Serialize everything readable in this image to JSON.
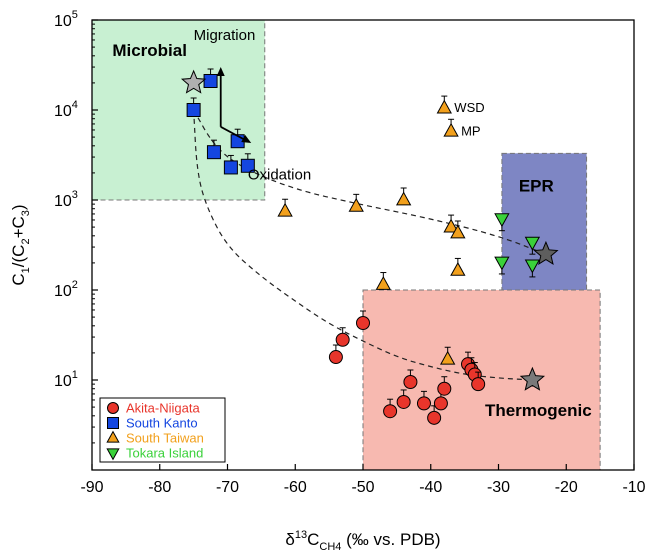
{
  "chart_data": {
    "type": "scatter",
    "xlabel": {
      "prefix": "δ",
      "sup": "13",
      "main": "C",
      "sub": "CH4",
      "suffix": " (‰ vs. PDB)"
    },
    "ylabel": {
      "a": "C",
      "a_sub": "1",
      "b": "/(C",
      "b_sub": "2",
      "c": "+C",
      "c_sub": "3",
      "d": ")"
    },
    "xlim": [
      -90,
      -10
    ],
    "ylim": [
      1,
      100000
    ],
    "yscale": "log",
    "grid": false,
    "legend_position": "bottom-left",
    "x_ticks": [
      -90,
      -80,
      -70,
      -60,
      -50,
      -40,
      -30,
      -20,
      -10
    ],
    "y_ticks": [
      {
        "value": 10,
        "base": "10",
        "exp": "1"
      },
      {
        "value": 100,
        "base": "10",
        "exp": "2"
      },
      {
        "value": 1000,
        "base": "10",
        "exp": "3"
      },
      {
        "value": 10000,
        "base": "10",
        "exp": "4"
      },
      {
        "value": 100000,
        "base": "10",
        "exp": "5"
      }
    ],
    "regions": [
      {
        "name": "Microbial",
        "x": [
          -90,
          -64.5
        ],
        "y": [
          1000,
          100000
        ],
        "color": "#c8f0d2",
        "label_at": [
          -87,
          40000
        ]
      },
      {
        "name": "EPR",
        "x": [
          -29.5,
          -17
        ],
        "y": [
          100,
          3300
        ],
        "color": "#7e86c4",
        "label_at": [
          -27,
          1250
        ]
      },
      {
        "name": "Thermogenic",
        "x": [
          -50,
          -15
        ],
        "y": [
          1,
          100
        ],
        "color": "#f7b9b0",
        "label_at": [
          -32,
          4
        ]
      }
    ],
    "annotations": {
      "migration": {
        "text": "Migration",
        "at": [
          -75,
          60000
        ]
      },
      "oxidation": {
        "text": "Oxidation",
        "at": [
          -67,
          1700
        ]
      }
    },
    "endmembers": [
      {
        "x": -75,
        "y": 20000,
        "color": "#b0b0b0"
      },
      {
        "x": -23,
        "y": 250,
        "color": "#5e5e5e"
      },
      {
        "x": -25,
        "y": 10,
        "color": "#7a7a7a"
      }
    ],
    "series": [
      {
        "name": "Akita-Niigata",
        "marker": "circle",
        "color": "#e8352b",
        "points": [
          {
            "x": -50,
            "y": 43
          },
          {
            "x": -53,
            "y": 28
          },
          {
            "x": -54,
            "y": 18
          },
          {
            "x": -46,
            "y": 4.5
          },
          {
            "x": -44,
            "y": 5.7
          },
          {
            "x": -43,
            "y": 9.5
          },
          {
            "x": -41,
            "y": 5.5
          },
          {
            "x": -39.5,
            "y": 3.8
          },
          {
            "x": -38.5,
            "y": 5.5
          },
          {
            "x": -38,
            "y": 8
          },
          {
            "x": -34.5,
            "y": 15
          },
          {
            "x": -34,
            "y": 13
          },
          {
            "x": -33.5,
            "y": 11.5
          },
          {
            "x": -33,
            "y": 9
          }
        ]
      },
      {
        "name": "South Kanto",
        "marker": "square",
        "color": "#1446e0",
        "points": [
          {
            "x": -75,
            "y": 10000
          },
          {
            "x": -72.5,
            "y": 21000
          },
          {
            "x": -72,
            "y": 3400
          },
          {
            "x": -68.5,
            "y": 4500
          },
          {
            "x": -69.5,
            "y": 2300
          },
          {
            "x": -67,
            "y": 2400
          }
        ]
      },
      {
        "name": "South Taiwan",
        "marker": "triangle-up",
        "color": "#f2a01c",
        "points": [
          {
            "x": -38,
            "y": 10500,
            "label": "WSD"
          },
          {
            "x": -37,
            "y": 5800,
            "label": "MP"
          },
          {
            "x": -61.5,
            "y": 750
          },
          {
            "x": -51,
            "y": 850
          },
          {
            "x": -44,
            "y": 1000
          },
          {
            "x": -37,
            "y": 500
          },
          {
            "x": -36,
            "y": 430
          },
          {
            "x": -36,
            "y": 165
          },
          {
            "x": -47,
            "y": 115
          },
          {
            "x": -37.5,
            "y": 17
          }
        ]
      },
      {
        "name": "Tokara Island",
        "marker": "triangle-down",
        "color": "#3ad13a",
        "points": [
          {
            "x": -29.5,
            "y": 620
          },
          {
            "x": -25,
            "y": 340
          },
          {
            "x": -29.5,
            "y": 205
          },
          {
            "x": -25,
            "y": 190
          }
        ]
      }
    ],
    "mixing_curves": [
      [
        [
          -75,
          10000
        ],
        [
          -72,
          4000
        ],
        [
          -68,
          2300
        ],
        [
          -60,
          1300
        ],
        [
          -50,
          880
        ],
        [
          -40,
          620
        ],
        [
          -30,
          400
        ],
        [
          -23,
          250
        ]
      ],
      [
        [
          -75,
          10000
        ],
        [
          -74.5,
          2000
        ],
        [
          -73,
          800
        ],
        [
          -70,
          300
        ],
        [
          -65,
          140
        ],
        [
          -60,
          75
        ],
        [
          -55,
          42
        ],
        [
          -50,
          27
        ],
        [
          -45,
          18
        ],
        [
          -40,
          14
        ],
        [
          -35,
          11.5
        ],
        [
          -30,
          10.5
        ],
        [
          -25,
          10
        ]
      ]
    ]
  }
}
